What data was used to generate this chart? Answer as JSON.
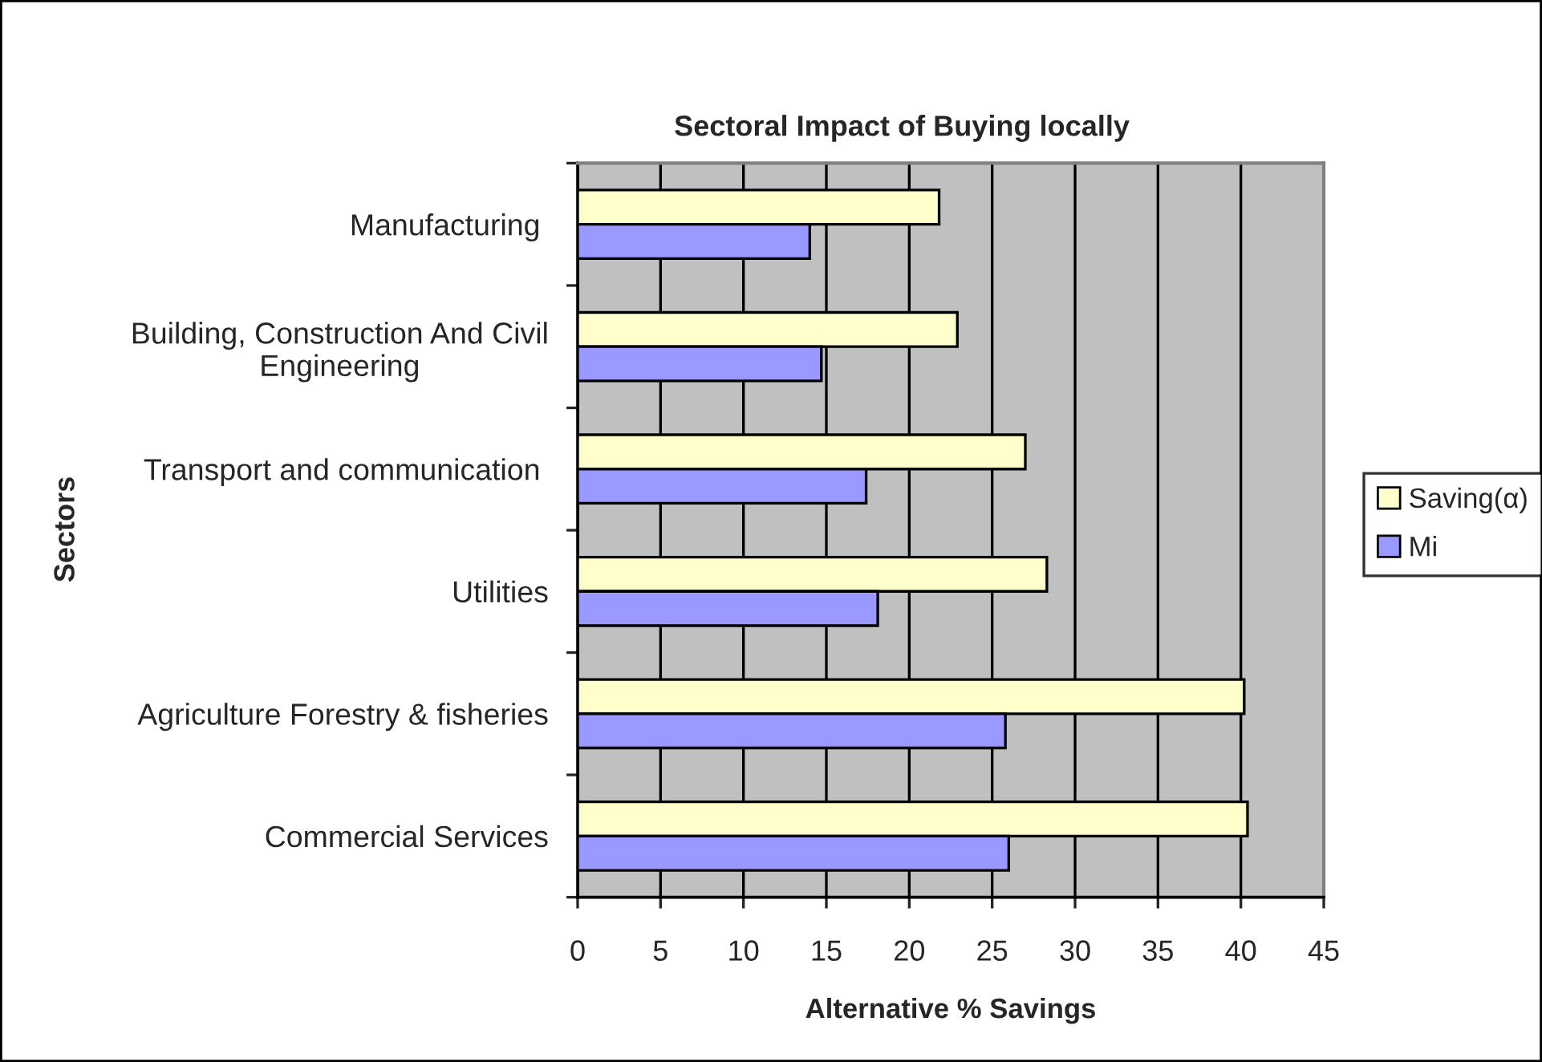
{
  "chart_data": {
    "type": "bar",
    "orientation": "horizontal",
    "title": "Sectoral Impact of Buying locally",
    "xlabel": "Alternative % Savings",
    "ylabel": "Sectors",
    "categories": [
      "Manufacturing ",
      "Building, Construction And Civil\nEngineering",
      "Transport and communication ",
      "Utilities",
      "Agriculture Forestry & fisheries",
      "Commercial Services"
    ],
    "series": [
      {
        "name": "Saving(α)",
        "color": "#ffffcc",
        "values": [
          21.8,
          22.9,
          27.0,
          28.3,
          40.2,
          40.4
        ]
      },
      {
        "name": "Mi",
        "color": "#9999ff",
        "values": [
          14.0,
          14.7,
          17.4,
          18.1,
          25.8,
          26.0
        ]
      }
    ],
    "xlim": [
      0,
      45
    ],
    "xticks": [
      0,
      5,
      10,
      15,
      20,
      25,
      30,
      35,
      40,
      45
    ],
    "grid": "x",
    "legend": "right"
  }
}
